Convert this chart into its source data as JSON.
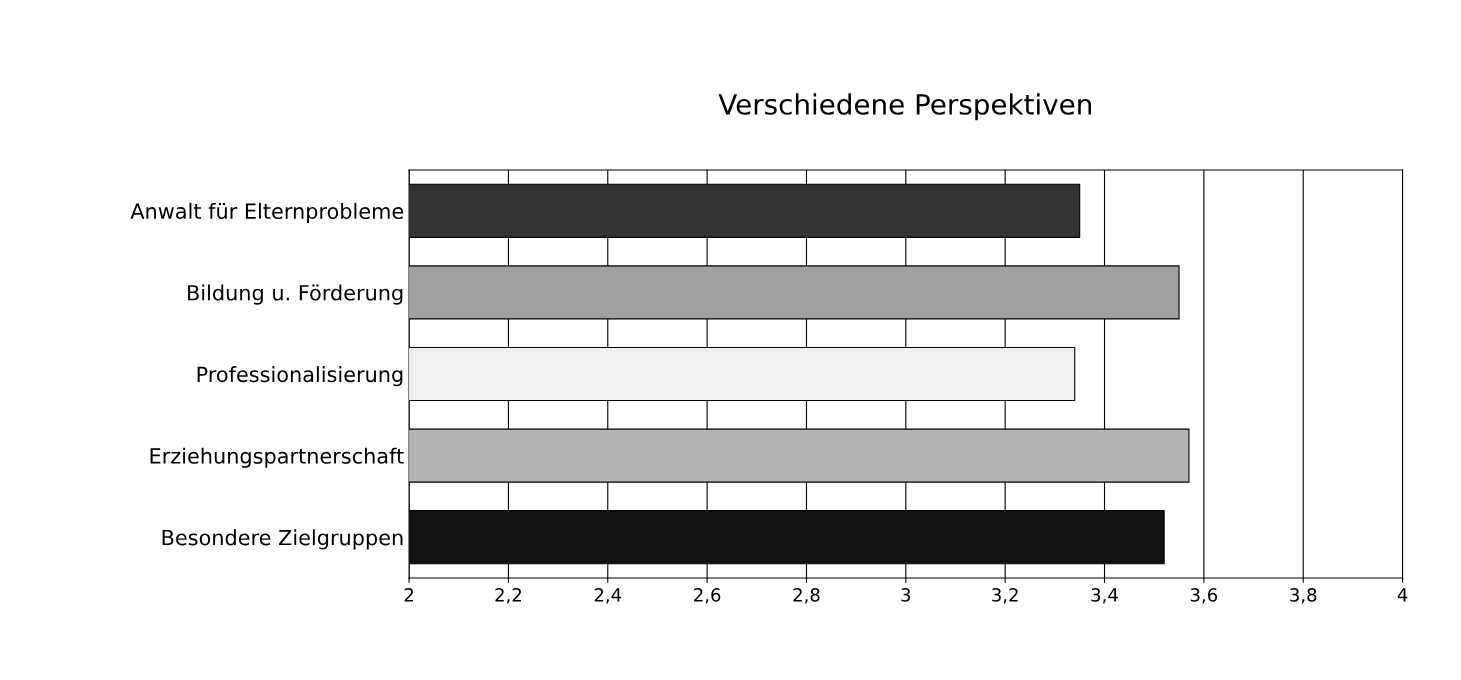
{
  "chart_data": {
    "type": "bar",
    "orientation": "horizontal",
    "title": "Verschiedene Perspektiven",
    "categories": [
      "Anwalt für Elternprobleme",
      "Bildung u. Förderung",
      "Professionalisierung",
      "Erziehungspartnerschaft",
      "Besondere Zielgruppen"
    ],
    "values": [
      3.35,
      3.55,
      3.34,
      3.57,
      3.52
    ],
    "colors": [
      "#333333",
      "#a0a0a0",
      "#f0f0f0",
      "#b4b4b4",
      "#111111"
    ],
    "xlim": [
      2,
      4
    ],
    "xticks": [
      2,
      {
        "value": 2.2,
        "label": "2,2"
      },
      {
        "value": 2.4,
        "label": "2,4"
      },
      {
        "value": 2.6,
        "label": "2,6"
      },
      {
        "value": 2.8,
        "label": "2,8"
      },
      3,
      {
        "value": 3.2,
        "label": "3,2"
      },
      {
        "value": 3.4,
        "label": "3,4"
      },
      {
        "value": 3.6,
        "label": "3,6"
      },
      {
        "value": 3.8,
        "label": "3,8"
      },
      4
    ],
    "grid": "x",
    "legend": false
  }
}
